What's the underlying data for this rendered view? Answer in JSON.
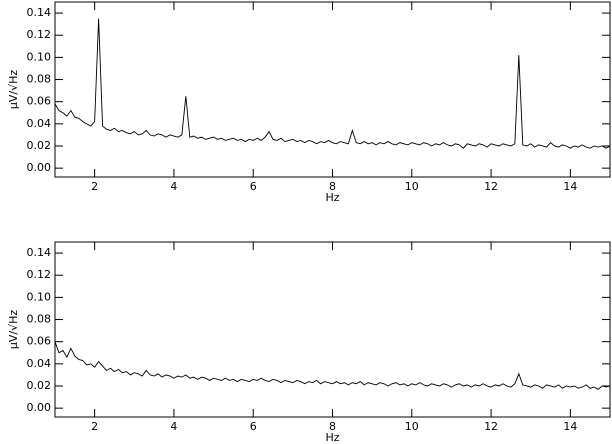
{
  "chart_data": [
    {
      "type": "line",
      "xlabel": "Hz",
      "ylabel": "μV/√Hz",
      "color": "#000000",
      "xlim": [
        1,
        15
      ],
      "xticks": [
        2,
        4,
        6,
        8,
        10,
        12,
        14
      ],
      "ylim": [
        -0.008,
        0.15
      ],
      "yticks": [
        {
          "value": 0,
          "label": "0.00"
        },
        {
          "value": 0.02,
          "label": "0.02"
        },
        {
          "value": 0.04,
          "label": "0.04"
        },
        {
          "value": 0.06,
          "label": "0.06"
        },
        {
          "value": 0.08,
          "label": "0.08"
        },
        {
          "value": 0.1,
          "label": "0.10"
        },
        {
          "value": 0.12,
          "label": "0.12"
        },
        {
          "value": 0.14,
          "label": "0.14"
        }
      ],
      "x": [
        1.0,
        1.1,
        1.2,
        1.3,
        1.4,
        1.5,
        1.6,
        1.7,
        1.8,
        1.9,
        2.0,
        2.1,
        2.2,
        2.3,
        2.4,
        2.5,
        2.6,
        2.7,
        2.8,
        2.9,
        3.0,
        3.1,
        3.2,
        3.3,
        3.4,
        3.5,
        3.6,
        3.7,
        3.8,
        3.9,
        4.0,
        4.1,
        4.2,
        4.3,
        4.4,
        4.5,
        4.6,
        4.7,
        4.8,
        4.9,
        5.0,
        5.1,
        5.2,
        5.3,
        5.4,
        5.5,
        5.6,
        5.7,
        5.8,
        5.9,
        6.0,
        6.1,
        6.2,
        6.3,
        6.4,
        6.5,
        6.6,
        6.7,
        6.8,
        6.9,
        7.0,
        7.1,
        7.2,
        7.3,
        7.4,
        7.5,
        7.6,
        7.7,
        7.8,
        7.9,
        8.0,
        8.1,
        8.2,
        8.3,
        8.4,
        8.5,
        8.6,
        8.7,
        8.8,
        8.9,
        9.0,
        9.1,
        9.2,
        9.3,
        9.4,
        9.5,
        9.6,
        9.7,
        9.8,
        9.9,
        10.0,
        10.1,
        10.2,
        10.3,
        10.4,
        10.5,
        10.6,
        10.7,
        10.8,
        10.9,
        11.0,
        11.1,
        11.2,
        11.3,
        11.4,
        11.5,
        11.6,
        11.7,
        11.8,
        11.9,
        12.0,
        12.1,
        12.2,
        12.3,
        12.4,
        12.5,
        12.6,
        12.7,
        12.8,
        12.9,
        13.0,
        13.1,
        13.2,
        13.3,
        13.4,
        13.5,
        13.6,
        13.7,
        13.8,
        13.9,
        14.0,
        14.1,
        14.2,
        14.3,
        14.4,
        14.5,
        14.6,
        14.7,
        14.8,
        14.9,
        15.0
      ],
      "values": [
        0.058,
        0.052,
        0.05,
        0.047,
        0.052,
        0.046,
        0.045,
        0.042,
        0.04,
        0.038,
        0.042,
        0.135,
        0.038,
        0.035,
        0.034,
        0.036,
        0.033,
        0.034,
        0.032,
        0.031,
        0.033,
        0.03,
        0.031,
        0.034,
        0.03,
        0.029,
        0.031,
        0.03,
        0.028,
        0.03,
        0.029,
        0.028,
        0.03,
        0.065,
        0.028,
        0.029,
        0.027,
        0.028,
        0.026,
        0.027,
        0.028,
        0.026,
        0.027,
        0.025,
        0.026,
        0.027,
        0.025,
        0.026,
        0.024,
        0.026,
        0.025,
        0.027,
        0.025,
        0.028,
        0.033,
        0.026,
        0.025,
        0.027,
        0.024,
        0.025,
        0.026,
        0.024,
        0.025,
        0.023,
        0.025,
        0.024,
        0.022,
        0.024,
        0.023,
        0.025,
        0.023,
        0.022,
        0.024,
        0.023,
        0.022,
        0.034,
        0.023,
        0.022,
        0.024,
        0.022,
        0.023,
        0.021,
        0.023,
        0.022,
        0.024,
        0.022,
        0.021,
        0.023,
        0.022,
        0.021,
        0.023,
        0.022,
        0.021,
        0.023,
        0.022,
        0.02,
        0.022,
        0.021,
        0.023,
        0.021,
        0.02,
        0.022,
        0.021,
        0.018,
        0.022,
        0.021,
        0.02,
        0.022,
        0.021,
        0.019,
        0.022,
        0.021,
        0.02,
        0.022,
        0.021,
        0.02,
        0.022,
        0.102,
        0.021,
        0.02,
        0.022,
        0.019,
        0.021,
        0.02,
        0.019,
        0.023,
        0.02,
        0.019,
        0.021,
        0.02,
        0.018,
        0.02,
        0.019,
        0.021,
        0.019,
        0.018,
        0.02,
        0.019,
        0.02,
        0.018,
        0.02
      ]
    },
    {
      "type": "line",
      "xlabel": "Hz",
      "ylabel": "μV/√Hz",
      "color": "#000000",
      "xlim": [
        1,
        15
      ],
      "xticks": [
        2,
        4,
        6,
        8,
        10,
        12,
        14
      ],
      "ylim": [
        -0.008,
        0.15
      ],
      "yticks": [
        {
          "value": 0,
          "label": "0.00"
        },
        {
          "value": 0.02,
          "label": "0.02"
        },
        {
          "value": 0.04,
          "label": "0.04"
        },
        {
          "value": 0.06,
          "label": "0.06"
        },
        {
          "value": 0.08,
          "label": "0.08"
        },
        {
          "value": 0.1,
          "label": "0.10"
        },
        {
          "value": 0.12,
          "label": "0.12"
        },
        {
          "value": 0.14,
          "label": "0.14"
        }
      ],
      "x": [
        1.0,
        1.1,
        1.2,
        1.3,
        1.4,
        1.5,
        1.6,
        1.7,
        1.8,
        1.9,
        2.0,
        2.1,
        2.2,
        2.3,
        2.4,
        2.5,
        2.6,
        2.7,
        2.8,
        2.9,
        3.0,
        3.1,
        3.2,
        3.3,
        3.4,
        3.5,
        3.6,
        3.7,
        3.8,
        3.9,
        4.0,
        4.1,
        4.2,
        4.3,
        4.4,
        4.5,
        4.6,
        4.7,
        4.8,
        4.9,
        5.0,
        5.1,
        5.2,
        5.3,
        5.4,
        5.5,
        5.6,
        5.7,
        5.8,
        5.9,
        6.0,
        6.1,
        6.2,
        6.3,
        6.4,
        6.5,
        6.6,
        6.7,
        6.8,
        6.9,
        7.0,
        7.1,
        7.2,
        7.3,
        7.4,
        7.5,
        7.6,
        7.7,
        7.8,
        7.9,
        8.0,
        8.1,
        8.2,
        8.3,
        8.4,
        8.5,
        8.6,
        8.7,
        8.8,
        8.9,
        9.0,
        9.1,
        9.2,
        9.3,
        9.4,
        9.5,
        9.6,
        9.7,
        9.8,
        9.9,
        10.0,
        10.1,
        10.2,
        10.3,
        10.4,
        10.5,
        10.6,
        10.7,
        10.8,
        10.9,
        11.0,
        11.1,
        11.2,
        11.3,
        11.4,
        11.5,
        11.6,
        11.7,
        11.8,
        11.9,
        12.0,
        12.1,
        12.2,
        12.3,
        12.4,
        12.5,
        12.6,
        12.7,
        12.8,
        12.9,
        13.0,
        13.1,
        13.2,
        13.3,
        13.4,
        13.5,
        13.6,
        13.7,
        13.8,
        13.9,
        14.0,
        14.1,
        14.2,
        14.3,
        14.4,
        14.5,
        14.6,
        14.7,
        14.8,
        14.9,
        15.0
      ],
      "values": [
        0.06,
        0.05,
        0.052,
        0.046,
        0.054,
        0.047,
        0.044,
        0.043,
        0.039,
        0.04,
        0.037,
        0.042,
        0.038,
        0.034,
        0.036,
        0.033,
        0.035,
        0.032,
        0.033,
        0.03,
        0.032,
        0.031,
        0.029,
        0.034,
        0.03,
        0.029,
        0.031,
        0.028,
        0.03,
        0.029,
        0.027,
        0.029,
        0.028,
        0.03,
        0.027,
        0.028,
        0.026,
        0.028,
        0.027,
        0.025,
        0.027,
        0.026,
        0.025,
        0.027,
        0.025,
        0.026,
        0.024,
        0.026,
        0.025,
        0.024,
        0.026,
        0.025,
        0.027,
        0.025,
        0.024,
        0.026,
        0.025,
        0.023,
        0.025,
        0.024,
        0.023,
        0.025,
        0.024,
        0.022,
        0.024,
        0.023,
        0.025,
        0.022,
        0.024,
        0.023,
        0.022,
        0.024,
        0.022,
        0.023,
        0.021,
        0.023,
        0.022,
        0.024,
        0.021,
        0.023,
        0.022,
        0.021,
        0.023,
        0.022,
        0.02,
        0.022,
        0.023,
        0.021,
        0.022,
        0.02,
        0.022,
        0.021,
        0.023,
        0.021,
        0.02,
        0.022,
        0.021,
        0.02,
        0.022,
        0.021,
        0.019,
        0.021,
        0.022,
        0.02,
        0.021,
        0.019,
        0.021,
        0.02,
        0.022,
        0.02,
        0.019,
        0.021,
        0.02,
        0.022,
        0.02,
        0.019,
        0.022,
        0.031,
        0.021,
        0.02,
        0.019,
        0.021,
        0.02,
        0.018,
        0.021,
        0.02,
        0.019,
        0.021,
        0.018,
        0.02,
        0.019,
        0.02,
        0.018,
        0.019,
        0.021,
        0.018,
        0.019,
        0.017,
        0.02,
        0.019,
        0.02
      ]
    }
  ]
}
